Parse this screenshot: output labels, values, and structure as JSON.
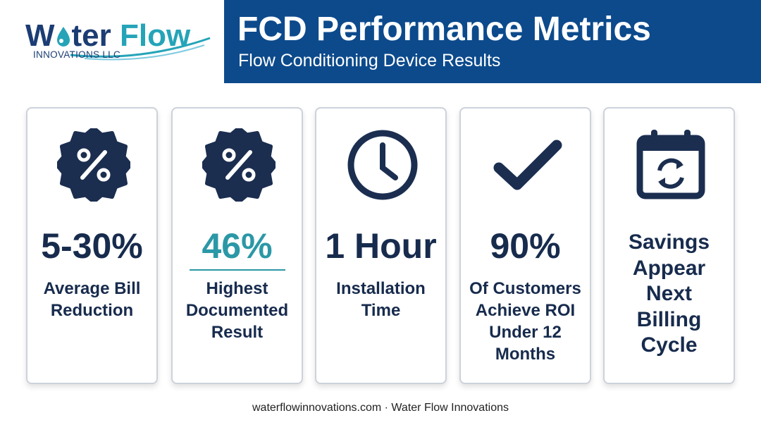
{
  "logo": {
    "word1_start": "W",
    "word1_end": "ter",
    "word2": "Flow",
    "tagline": "INNOVATIONS LLC"
  },
  "header": {
    "title": "FCD Performance Metrics",
    "subtitle": "Flow Conditioning Device Results"
  },
  "cards": [
    {
      "value": "5-30%",
      "label": [
        "Average Bill",
        "Reduction"
      ]
    },
    {
      "value": "46%",
      "label": [
        "Highest",
        "Documented",
        "Result"
      ]
    },
    {
      "value": "1 Hour",
      "label": [
        "Installation",
        "Time"
      ]
    },
    {
      "value": "90%",
      "label": [
        "Of Customers",
        "Achieve ROI",
        "Under 12",
        "Months"
      ]
    },
    {
      "label": [
        "Savings",
        "Appear",
        "Next",
        "Billing",
        "Cycle"
      ]
    }
  ],
  "footer": "waterflowinnovations.com · Water Flow Innovations"
}
